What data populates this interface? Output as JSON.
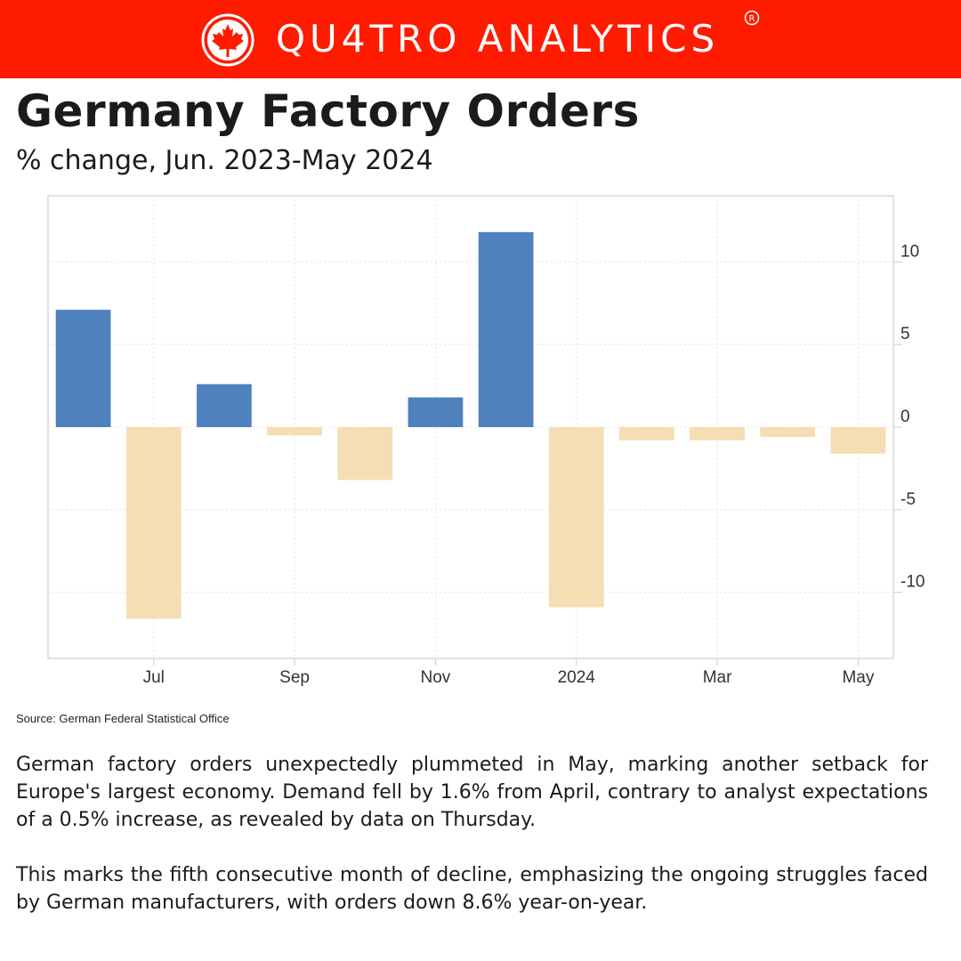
{
  "brand": {
    "name": "QU4TRO ANALYTICS",
    "registered_mark": "R",
    "logo_icon": "maple-leaf-icon",
    "bar_color": "#ff1b00"
  },
  "header": {
    "title": "Germany Factory Orders",
    "subtitle": "% change, Jun. 2023-May 2024"
  },
  "chart_data": {
    "type": "bar",
    "title": "Germany Factory Orders",
    "subtitle": "% change, Jun. 2023-May 2024",
    "categories": [
      "Jun 2023",
      "Jul 2023",
      "Aug 2023",
      "Sep 2023",
      "Oct 2023",
      "Nov 2023",
      "Dec 2023",
      "Jan 2024",
      "Feb 2024",
      "Mar 2024",
      "Apr 2024",
      "May 2024"
    ],
    "values": [
      7.1,
      -11.6,
      2.6,
      -0.5,
      -3.2,
      1.8,
      11.8,
      -10.9,
      -0.8,
      -0.8,
      -0.6,
      -1.6
    ],
    "x_tick_labels": [
      "Jul",
      "Sep",
      "Nov",
      "2024",
      "Mar",
      "May"
    ],
    "x_tick_categories": [
      "Jul 2023",
      "Sep 2023",
      "Nov 2023",
      "Jan 2024",
      "Mar 2024",
      "May 2024"
    ],
    "y_ticks": [
      10,
      5,
      0,
      -5,
      -10
    ],
    "ylim": [
      -14,
      14
    ],
    "y_axis_side": "right",
    "grid": true,
    "colors": {
      "positive": "#4f81bd",
      "negative": "#f5deb3"
    },
    "source": "Source: German Federal Statistical Office"
  },
  "body": {
    "paragraph_1": "German factory orders unexpectedly plummeted in May, marking another setback for Europe's largest economy. Demand fell by 1.6% from April, contrary to analyst expectations of a 0.5% increase, as revealed by data on Thursday.",
    "paragraph_2": "This marks the fifth consecutive month of decline, emphasizing the ongoing struggles faced by German manufacturers, with orders down 8.6% year-on-year."
  }
}
